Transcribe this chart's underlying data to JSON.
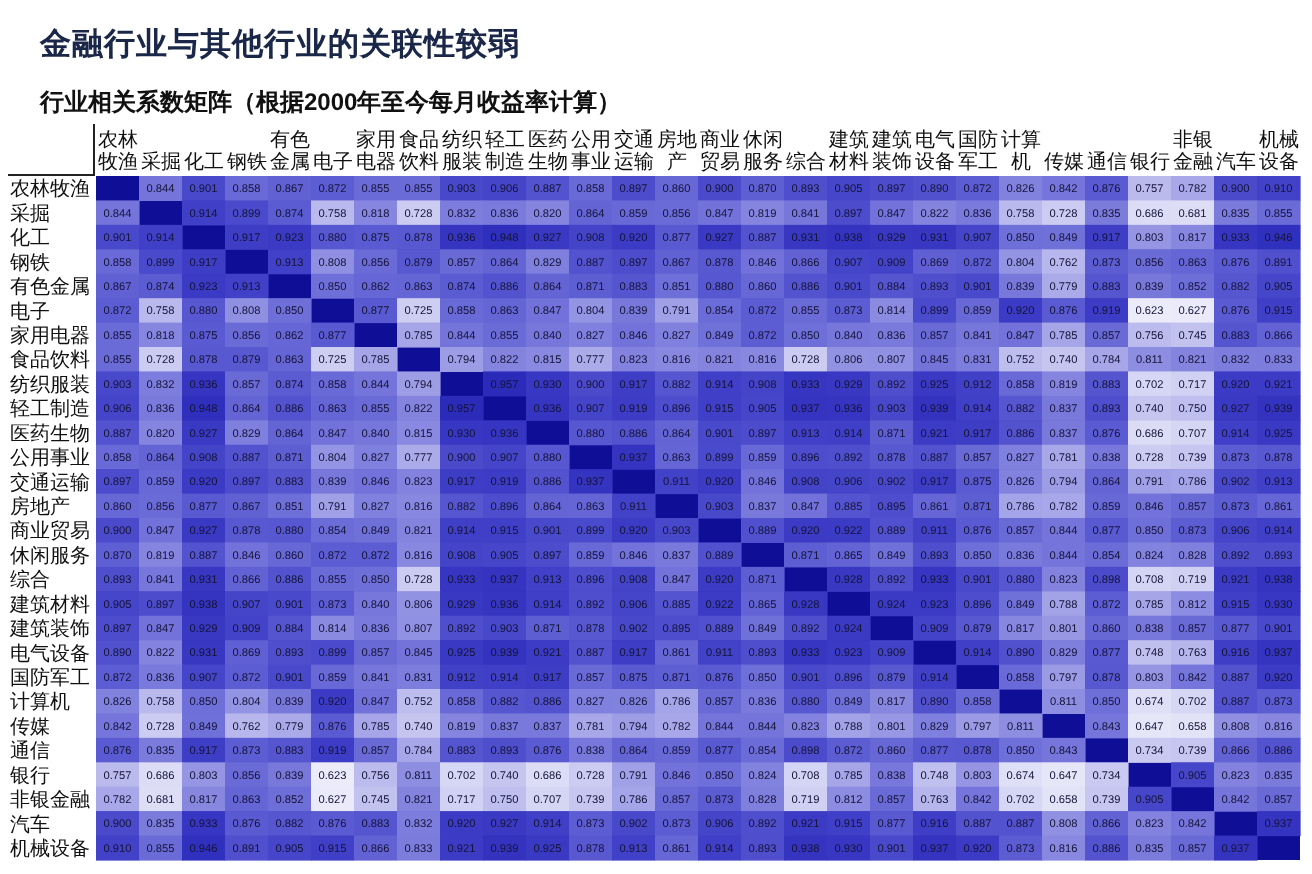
{
  "chart_data": {
    "type": "heatmap",
    "title": "金融行业与其他行业的关联性较弱",
    "subtitle": "行业相关系数矩阵（根据2000年至今每月收益率计算）",
    "categories": [
      "农林牧渔",
      "采掘",
      "化工",
      "钢铁",
      "有色金属",
      "电子",
      "家用电器",
      "食品饮料",
      "纺织服装",
      "轻工制造",
      "医药生物",
      "公用事业",
      "交通运输",
      "房地产",
      "商业贸易",
      "休闲服务",
      "综合",
      "建筑材料",
      "建筑装饰",
      "电气设备",
      "国防军工",
      "计算机",
      "传媒",
      "通信",
      "银行",
      "非银金融",
      "汽车",
      "机械设备"
    ],
    "y_categories": [
      "农林牧渔",
      "采掘",
      "化工",
      "钢铁",
      "有色金属",
      "电子",
      "家用电器",
      "食品饮料",
      "纺织服装",
      "轻工制造",
      "医药生物",
      "公用事业",
      "交通运输",
      "房地产",
      "商业贸易",
      "休闲服务",
      "综合",
      "建筑材料",
      "建筑装饰",
      "电气设备",
      "国防军工",
      "计算机",
      "传媒",
      "通信",
      "银行",
      "非银金融",
      "汽车",
      "机械设备"
    ],
    "cells": [
      [
        null,
        0.844,
        0.901,
        0.858,
        0.867,
        0.872,
        0.855,
        0.855,
        0.903,
        0.906,
        0.887,
        0.858,
        0.897,
        0.86,
        0.9,
        0.87,
        0.893,
        0.905,
        0.897,
        0.89,
        0.872,
        0.826,
        0.842,
        0.876,
        0.757,
        0.782,
        0.9,
        0.91
      ],
      [
        0.844,
        null,
        0.914,
        0.899,
        0.874,
        0.758,
        0.818,
        0.728,
        0.832,
        0.836,
        0.82,
        0.864,
        0.859,
        0.856,
        0.847,
        0.819,
        0.841,
        0.897,
        0.847,
        0.822,
        0.836,
        0.758,
        0.728,
        0.835,
        0.686,
        0.681,
        0.835,
        0.855
      ],
      [
        0.901,
        0.914,
        null,
        0.917,
        0.923,
        0.88,
        0.875,
        0.878,
        0.936,
        0.948,
        0.927,
        0.908,
        0.92,
        0.877,
        0.927,
        0.887,
        0.931,
        0.938,
        0.929,
        0.931,
        0.907,
        0.85,
        0.849,
        0.917,
        0.803,
        0.817,
        0.933,
        0.946
      ],
      [
        0.858,
        0.899,
        0.917,
        null,
        0.913,
        0.808,
        0.856,
        0.879,
        0.857,
        0.864,
        0.829,
        0.887,
        0.897,
        0.867,
        0.878,
        0.846,
        0.866,
        0.907,
        0.909,
        0.869,
        0.872,
        0.804,
        0.762,
        0.873,
        0.856,
        0.863,
        0.876,
        0.891
      ],
      [
        0.867,
        0.874,
        0.923,
        0.913,
        null,
        0.85,
        0.862,
        0.863,
        0.874,
        0.886,
        0.864,
        0.871,
        0.883,
        0.851,
        0.88,
        0.86,
        0.886,
        0.901,
        0.884,
        0.893,
        0.901,
        0.839,
        0.779,
        0.883,
        0.839,
        0.852,
        0.882,
        0.905
      ],
      [
        0.872,
        0.758,
        0.88,
        0.808,
        0.85,
        null,
        0.877,
        0.725,
        0.858,
        0.863,
        0.847,
        0.804,
        0.839,
        0.791,
        0.854,
        0.872,
        0.855,
        0.873,
        0.814,
        0.899,
        0.859,
        0.92,
        0.876,
        0.919,
        0.623,
        0.627,
        0.876,
        0.915
      ],
      [
        0.855,
        0.818,
        0.875,
        0.856,
        0.862,
        0.877,
        null,
        0.785,
        0.844,
        0.855,
        0.84,
        0.827,
        0.846,
        0.827,
        0.849,
        0.872,
        0.85,
        0.84,
        0.836,
        0.857,
        0.841,
        0.847,
        0.785,
        0.857,
        0.756,
        0.745,
        0.883,
        0.866
      ],
      [
        0.855,
        0.728,
        0.878,
        0.879,
        0.863,
        0.725,
        0.785,
        null,
        0.794,
        0.822,
        0.815,
        0.777,
        0.823,
        0.816,
        0.821,
        0.816,
        0.728,
        0.806,
        0.807,
        0.845,
        0.831,
        0.752,
        0.74,
        0.784,
        0.811,
        0.821,
        0.832,
        0.833
      ],
      [
        0.903,
        0.832,
        0.936,
        0.857,
        0.874,
        0.858,
        0.844,
        0.794,
        null,
        0.957,
        0.93,
        0.9,
        0.917,
        0.882,
        0.914,
        0.908,
        0.933,
        0.929,
        0.892,
        0.925,
        0.912,
        0.858,
        0.819,
        0.883,
        0.702,
        0.717,
        0.92,
        0.921
      ],
      [
        0.906,
        0.836,
        0.948,
        0.864,
        0.886,
        0.863,
        0.855,
        0.822,
        0.957,
        null,
        0.936,
        0.907,
        0.919,
        0.896,
        0.915,
        0.905,
        0.937,
        0.936,
        0.903,
        0.939,
        0.914,
        0.882,
        0.837,
        0.893,
        0.74,
        0.75,
        0.927,
        0.939
      ],
      [
        0.887,
        0.82,
        0.927,
        0.829,
        0.864,
        0.847,
        0.84,
        0.815,
        0.93,
        0.936,
        null,
        0.88,
        0.886,
        0.864,
        0.901,
        0.897,
        0.913,
        0.914,
        0.871,
        0.921,
        0.917,
        0.886,
        0.837,
        0.876,
        0.686,
        0.707,
        0.914,
        0.925
      ],
      [
        0.858,
        0.864,
        0.908,
        0.887,
        0.871,
        0.804,
        0.827,
        0.777,
        0.9,
        0.907,
        0.88,
        null,
        0.937,
        0.863,
        0.899,
        0.859,
        0.896,
        0.892,
        0.878,
        0.887,
        0.857,
        0.827,
        0.781,
        0.838,
        0.728,
        0.739,
        0.873,
        0.878
      ],
      [
        0.897,
        0.859,
        0.92,
        0.897,
        0.883,
        0.839,
        0.846,
        0.823,
        0.917,
        0.919,
        0.886,
        0.937,
        null,
        0.911,
        0.92,
        0.846,
        0.908,
        0.906,
        0.902,
        0.917,
        0.875,
        0.826,
        0.794,
        0.864,
        0.791,
        0.786,
        0.902,
        0.913
      ],
      [
        0.86,
        0.856,
        0.877,
        0.867,
        0.851,
        0.791,
        0.827,
        0.816,
        0.882,
        0.896,
        0.864,
        0.863,
        0.911,
        null,
        0.903,
        0.837,
        0.847,
        0.885,
        0.895,
        0.861,
        0.871,
        0.786,
        0.782,
        0.859,
        0.846,
        0.857,
        0.873,
        0.861
      ],
      [
        0.9,
        0.847,
        0.927,
        0.878,
        0.88,
        0.854,
        0.849,
        0.821,
        0.914,
        0.915,
        0.901,
        0.899,
        0.92,
        0.903,
        null,
        0.889,
        0.92,
        0.922,
        0.889,
        0.911,
        0.876,
        0.857,
        0.844,
        0.877,
        0.85,
        0.873,
        0.906,
        0.914
      ],
      [
        0.87,
        0.819,
        0.887,
        0.846,
        0.86,
        0.872,
        0.872,
        0.816,
        0.908,
        0.905,
        0.897,
        0.859,
        0.846,
        0.837,
        0.889,
        null,
        0.871,
        0.865,
        0.849,
        0.893,
        0.85,
        0.836,
        0.844,
        0.854,
        0.824,
        0.828,
        0.892,
        0.893
      ],
      [
        0.893,
        0.841,
        0.931,
        0.866,
        0.886,
        0.855,
        0.85,
        0.728,
        0.933,
        0.937,
        0.913,
        0.896,
        0.908,
        0.847,
        0.92,
        0.871,
        null,
        0.928,
        0.892,
        0.933,
        0.901,
        0.88,
        0.823,
        0.898,
        0.708,
        0.719,
        0.921,
        0.938
      ],
      [
        0.905,
        0.897,
        0.938,
        0.907,
        0.901,
        0.873,
        0.84,
        0.806,
        0.929,
        0.936,
        0.914,
        0.892,
        0.906,
        0.885,
        0.922,
        0.865,
        0.928,
        null,
        0.924,
        0.923,
        0.896,
        0.849,
        0.788,
        0.872,
        0.785,
        0.812,
        0.915,
        0.93
      ],
      [
        0.897,
        0.847,
        0.929,
        0.909,
        0.884,
        0.814,
        0.836,
        0.807,
        0.892,
        0.903,
        0.871,
        0.878,
        0.902,
        0.895,
        0.889,
        0.849,
        0.892,
        0.924,
        null,
        0.909,
        0.879,
        0.817,
        0.801,
        0.86,
        0.838,
        0.857,
        0.877,
        0.901
      ],
      [
        0.89,
        0.822,
        0.931,
        0.869,
        0.893,
        0.899,
        0.857,
        0.845,
        0.925,
        0.939,
        0.921,
        0.887,
        0.917,
        0.861,
        0.911,
        0.893,
        0.933,
        0.923,
        0.909,
        null,
        0.914,
        0.89,
        0.829,
        0.877,
        0.748,
        0.763,
        0.916,
        0.937
      ],
      [
        0.872,
        0.836,
        0.907,
        0.872,
        0.901,
        0.859,
        0.841,
        0.831,
        0.912,
        0.914,
        0.917,
        0.857,
        0.875,
        0.871,
        0.876,
        0.85,
        0.901,
        0.896,
        0.879,
        0.914,
        null,
        0.858,
        0.797,
        0.878,
        0.803,
        0.842,
        0.887,
        0.92
      ],
      [
        0.826,
        0.758,
        0.85,
        0.804,
        0.839,
        0.92,
        0.847,
        0.752,
        0.858,
        0.882,
        0.886,
        0.827,
        0.826,
        0.786,
        0.857,
        0.836,
        0.88,
        0.849,
        0.817,
        0.89,
        0.858,
        null,
        0.811,
        0.85,
        0.674,
        0.702,
        0.887,
        0.873
      ],
      [
        0.842,
        0.728,
        0.849,
        0.762,
        0.779,
        0.876,
        0.785,
        0.74,
        0.819,
        0.837,
        0.837,
        0.781,
        0.794,
        0.782,
        0.844,
        0.844,
        0.823,
        0.788,
        0.801,
        0.829,
        0.797,
        0.811,
        null,
        0.843,
        0.647,
        0.658,
        0.808,
        0.816
      ],
      [
        0.876,
        0.835,
        0.917,
        0.873,
        0.883,
        0.919,
        0.857,
        0.784,
        0.883,
        0.893,
        0.876,
        0.838,
        0.864,
        0.859,
        0.877,
        0.854,
        0.898,
        0.872,
        0.86,
        0.877,
        0.878,
        0.85,
        0.843,
        null,
        0.734,
        0.739,
        0.866,
        0.886
      ],
      [
        0.757,
        0.686,
        0.803,
        0.856,
        0.839,
        0.623,
        0.756,
        0.811,
        0.702,
        0.74,
        0.686,
        0.728,
        0.791,
        0.846,
        0.85,
        0.824,
        0.708,
        0.785,
        0.838,
        0.748,
        0.803,
        0.674,
        0.647,
        0.734,
        null,
        0.905,
        0.823,
        0.835
      ],
      [
        0.782,
        0.681,
        0.817,
        0.863,
        0.852,
        0.627,
        0.745,
        0.821,
        0.717,
        0.75,
        0.707,
        0.739,
        0.786,
        0.857,
        0.873,
        0.828,
        0.719,
        0.812,
        0.857,
        0.763,
        0.842,
        0.702,
        0.658,
        0.739,
        0.905,
        null,
        0.842,
        0.857
      ],
      [
        0.9,
        0.835,
        0.933,
        0.876,
        0.882,
        0.876,
        0.883,
        0.832,
        0.92,
        0.927,
        0.914,
        0.873,
        0.902,
        0.873,
        0.906,
        0.892,
        0.921,
        0.915,
        0.877,
        0.916,
        0.887,
        0.887,
        0.808,
        0.866,
        0.823,
        0.842,
        null,
        0.937
      ],
      [
        0.91,
        0.855,
        0.946,
        0.891,
        0.905,
        0.915,
        0.866,
        0.833,
        0.921,
        0.939,
        0.925,
        0.878,
        0.913,
        0.861,
        0.914,
        0.893,
        0.938,
        0.93,
        0.901,
        0.937,
        0.92,
        0.873,
        0.816,
        0.886,
        0.835,
        0.857,
        0.937,
        null
      ]
    ],
    "cell_labels": [
      [
        null,
        "0.844",
        "0.901",
        "0.858",
        "0.867",
        "0.872",
        "0.855",
        "0.855",
        "0.903",
        "0.906",
        "0.887",
        "0.858",
        "0.897",
        "0.860",
        "0.900",
        "0.870",
        "0.893",
        "0.905",
        "0.897",
        "0.890",
        "0.872",
        "0.826",
        "0.842",
        "0.876",
        "0.757",
        "0.782",
        "0.900",
        "0.910"
      ],
      [
        "0.844",
        null,
        "0.914",
        "0.899",
        "0.874",
        "0.758",
        "0.818",
        "0.728",
        "0.832",
        "0.836",
        "0.820",
        "0.864",
        "0.859",
        "0.856",
        "0.847",
        "0.819",
        "0.841",
        "0.897",
        "0.847",
        "0.822",
        "0.836",
        "0.758",
        "0.728",
        "0.835",
        "0.686",
        "0.681",
        "0.835",
        "0.855"
      ],
      [
        "0.901",
        "0.914",
        null,
        "0.917",
        "0.923",
        "0.880",
        "0.875",
        "0.878",
        "0.936",
        "0.948",
        "0.927",
        "0.908",
        "0.920",
        "0.877",
        "0.927",
        "0.887",
        "0.931",
        "0.938",
        "0.929",
        "0.931",
        "0.907",
        "0.850",
        "0.849",
        "0.917",
        "0.803",
        "0.817",
        "0.933",
        "0.946"
      ],
      [
        "0.858",
        "0.899",
        "0.917",
        null,
        "0.913",
        "0.808",
        "0.856",
        "0.879",
        "0.857",
        "0.864",
        "0.829",
        "0.887",
        "0.897",
        "0.867",
        "0.878",
        "0.846",
        "0.866",
        "0.907",
        "0.909",
        "0.869",
        "0.872",
        "0.804",
        "0.762",
        "0.873",
        "0.856",
        "0.863",
        "0.876",
        "0.891"
      ],
      [
        "0.867",
        "0.874",
        "0.923",
        "0.913",
        null,
        "0.850",
        "0.862",
        "0.863",
        "0.874",
        "0.886",
        "0.864",
        "0.871",
        "0.883",
        "0.851",
        "0.880",
        "0.860",
        "0.886",
        "0.901",
        "0.884",
        "0.893",
        "0.901",
        "0.839",
        "0.779",
        "0.883",
        "0.839",
        "0.852",
        "0.882",
        "0.905"
      ],
      [
        "0.872",
        "0.758",
        "0.880",
        "0.808",
        "0.850",
        null,
        "0.877",
        "0.725",
        "0.858",
        "0.863",
        "0.847",
        "0.804",
        "0.839",
        "0.791",
        "0.854",
        "0.872",
        "0.855",
        "0.873",
        "0.814",
        "0.899",
        "0.859",
        "0.920",
        "0.876",
        "0.919",
        "0.623",
        "0.627",
        "0.876",
        "0.915"
      ],
      [
        "0.855",
        "0.818",
        "0.875",
        "0.856",
        "0.862",
        "0.877",
        null,
        "0.785",
        "0.844",
        "0.855",
        "0.840",
        "0.827",
        "0.846",
        "0.827",
        "0.849",
        "0.872",
        "0.850",
        "0.840",
        "0.836",
        "0.857",
        "0.841",
        "0.847",
        "0.785",
        "0.857",
        "0.756",
        "0.745",
        "0.883",
        "0.866"
      ],
      [
        "0.855",
        "0.728",
        "0.878",
        "0.879",
        "0.863",
        "0.725",
        "0.785",
        null,
        "0.794",
        "0.822",
        "0.815",
        "0.777",
        "0.823",
        "0.816",
        "0.821",
        "0.816",
        "0.728",
        "0.806",
        "0.807",
        "0.845",
        "0.831",
        "0.752",
        "0.740",
        "0.784",
        "0.811",
        "0.821",
        "0.832",
        "0.833"
      ],
      [
        "0.903",
        "0.832",
        "0.936",
        "0.857",
        "0.874",
        "0.858",
        "0.844",
        "0.794",
        null,
        "0.957",
        "0.930",
        "0.900",
        "0.917",
        "0.882",
        "0.914",
        "0.908",
        "0.933",
        "0.929",
        "0.892",
        "0.925",
        "0.912",
        "0.858",
        "0.819",
        "0.883",
        "0.702",
        "0.717",
        "0.920",
        "0.921"
      ],
      [
        "0.906",
        "0.836",
        "0.948",
        "0.864",
        "0.886",
        "0.863",
        "0.855",
        "0.822",
        "0.957",
        null,
        "0.936",
        "0.907",
        "0.919",
        "0.896",
        "0.915",
        "0.905",
        "0.937",
        "0.936",
        "0.903",
        "0.939",
        "0.914",
        "0.882",
        "0.837",
        "0.893",
        "0.740",
        "0.750",
        "0.927",
        "0.939"
      ],
      [
        "0.887",
        "0.820",
        "0.927",
        "0.829",
        "0.864",
        "0.847",
        "0.840",
        "0.815",
        "0.930",
        "0.936",
        null,
        "0.880",
        "0.886",
        "0.864",
        "0.901",
        "0.897",
        "0.913",
        "0.914",
        "0.871",
        "0.921",
        "0.917",
        "0.886",
        "0.837",
        "0.876",
        "0.686",
        "0.707",
        "0.914",
        "0.925"
      ],
      [
        "0.858",
        "0.864",
        "0.908",
        "0.887",
        "0.871",
        "0.804",
        "0.827",
        "0.777",
        "0.900",
        "0.907",
        "0.880",
        null,
        "0.937",
        "0.863",
        "0.899",
        "0.859",
        "0.896",
        "0.892",
        "0.878",
        "0.887",
        "0.857",
        "0.827",
        "0.781",
        "0.838",
        "0.728",
        "0.739",
        "0.873",
        "0.878"
      ],
      [
        "0.897",
        "0.859",
        "0.920",
        "0.897",
        "0.883",
        "0.839",
        "0.846",
        "0.823",
        "0.917",
        "0.919",
        "0.886",
        "0.937",
        null,
        "0.911",
        "0.920",
        "0.846",
        "0.908",
        "0.906",
        "0.902",
        "0.917",
        "0.875",
        "0.826",
        "0.794",
        "0.864",
        "0.791",
        "0.786",
        "0.902",
        "0.913"
      ],
      [
        "0.860",
        "0.856",
        "0.877",
        "0.867",
        "0.851",
        "0.791",
        "0.827",
        "0.816",
        "0.882",
        "0.896",
        "0.864",
        "0.863",
        "0.911",
        null,
        "0.903",
        "0.837",
        "0.847",
        "0.885",
        "0.895",
        "0.861",
        "0.871",
        "0.786",
        "0.782",
        "0.859",
        "0.846",
        "0.857",
        "0.873",
        "0.861"
      ],
      [
        "0.900",
        "0.847",
        "0.927",
        "0.878",
        "0.880",
        "0.854",
        "0.849",
        "0.821",
        "0.914",
        "0.915",
        "0.901",
        "0.899",
        "0.920",
        "0.903",
        null,
        "0.889",
        "0.920",
        "0.922",
        "0.889",
        "0.911",
        "0.876",
        "0.857",
        "0.844",
        "0.877",
        "0.850",
        "0.873",
        "0.906",
        "0.914"
      ],
      [
        "0.870",
        "0.819",
        "0.887",
        "0.846",
        "0.860",
        "0.872",
        "0.872",
        "0.816",
        "0.908",
        "0.905",
        "0.897",
        "0.859",
        "0.846",
        "0.837",
        "0.889",
        null,
        "0.871",
        "0.865",
        "0.849",
        "0.893",
        "0.850",
        "0.836",
        "0.844",
        "0.854",
        "0.824",
        "0.828",
        "0.892",
        "0.893"
      ],
      [
        "0.893",
        "0.841",
        "0.931",
        "0.866",
        "0.886",
        "0.855",
        "0.850",
        "0.728",
        "0.933",
        "0.937",
        "0.913",
        "0.896",
        "0.908",
        "0.847",
        "0.920",
        "0.871",
        null,
        "0.928",
        "0.892",
        "0.933",
        "0.901",
        "0.880",
        "0.823",
        "0.898",
        "0.708",
        "0.719",
        "0.921",
        "0.938"
      ],
      [
        "0.905",
        "0.897",
        "0.938",
        "0.907",
        "0.901",
        "0.873",
        "0.840",
        "0.806",
        "0.929",
        "0.936",
        "0.914",
        "0.892",
        "0.906",
        "0.885",
        "0.922",
        "0.865",
        "0.928",
        null,
        "0.924",
        "0.923",
        "0.896",
        "0.849",
        "0.788",
        "0.872",
        "0.785",
        "0.812",
        "0.915",
        "0.930"
      ],
      [
        "0.897",
        "0.847",
        "0.929",
        "0.909",
        "0.884",
        "0.814",
        "0.836",
        "0.807",
        "0.892",
        "0.903",
        "0.871",
        "0.878",
        "0.902",
        "0.895",
        "0.889",
        "0.849",
        "0.892",
        "0.924",
        null,
        "0.909",
        "0.879",
        "0.817",
        "0.801",
        "0.860",
        "0.838",
        "0.857",
        "0.877",
        "0.901"
      ],
      [
        "0.890",
        "0.822",
        "0.931",
        "0.869",
        "0.893",
        "0.899",
        "0.857",
        "0.845",
        "0.925",
        "0.939",
        "0.921",
        "0.887",
        "0.917",
        "0.861",
        "0.911",
        "0.893",
        "0.933",
        "0.923",
        "0.909",
        null,
        "0.914",
        "0.890",
        "0.829",
        "0.877",
        "0.748",
        "0.763",
        "0.916",
        "0.937"
      ],
      [
        "0.872",
        "0.836",
        "0.907",
        "0.872",
        "0.901",
        "0.859",
        "0.841",
        "0.831",
        "0.912",
        "0.914",
        "0.917",
        "0.857",
        "0.875",
        "0.871",
        "0.876",
        "0.850",
        "0.901",
        "0.896",
        "0.879",
        "0.914",
        null,
        "0.858",
        "0.797",
        "0.878",
        "0.803",
        "0.842",
        "0.887",
        "0.920"
      ],
      [
        "0.826",
        "0.758",
        "0.850",
        "0.804",
        "0.839",
        "0.920",
        "0.847",
        "0.752",
        "0.858",
        "0.882",
        "0.886",
        "0.827",
        "0.826",
        "0.786",
        "0.857",
        "0.836",
        "0.880",
        "0.849",
        "0.817",
        "0.890",
        "0.858",
        null,
        "0.811",
        "0.850",
        "0.674",
        "0.702",
        "0.887",
        "0.873"
      ],
      [
        "0.842",
        "0.728",
        "0.849",
        "0.762",
        "0.779",
        "0.876",
        "0.785",
        "0.740",
        "0.819",
        "0.837",
        "0.837",
        "0.781",
        "0.794",
        "0.782",
        "0.844",
        "0.844",
        "0.823",
        "0.788",
        "0.801",
        "0.829",
        "0.797",
        "0.811",
        null,
        "0.843",
        "0.647",
        "0.658",
        "0.808",
        "0.816"
      ],
      [
        "0.876",
        "0.835",
        "0.917",
        "0.873",
        "0.883",
        "0.919",
        "0.857",
        "0.784",
        "0.883",
        "0.893",
        "0.876",
        "0.838",
        "0.864",
        "0.859",
        "0.877",
        "0.854",
        "0.898",
        "0.872",
        "0.860",
        "0.877",
        "0.878",
        "0.850",
        "0.843",
        null,
        "0.734",
        "0.739",
        "0.866",
        "0.886"
      ],
      [
        "0.757",
        "0.686",
        "0.803",
        "0.856",
        "0.839",
        "0.623",
        "0.756",
        "0.811",
        "0.702",
        "0.740",
        "0.686",
        "0.728",
        "0.791",
        "0.846",
        "0.850",
        "0.824",
        "0.708",
        "0.785",
        "0.838",
        "0.748",
        "0.803",
        "0.674",
        "0.647",
        "0.734",
        null,
        "0.905",
        "0.823",
        "0.835"
      ],
      [
        "0.782",
        "0.681",
        "0.817",
        "0.863",
        "0.852",
        "0.627",
        "0.745",
        "0.821",
        "0.717",
        "0.750",
        "0.707",
        "0.739",
        "0.786",
        "0.857",
        "0.873",
        "0.828",
        "0.719",
        "0.812",
        "0.857",
        "0.763",
        "0.842",
        "0.702",
        "0.658",
        "0.739",
        "0.905",
        null,
        "0.842",
        "0.857"
      ],
      [
        "0.900",
        "0.835",
        "0.933",
        "0.876",
        "0.882",
        "0.876",
        "0.883",
        "0.832",
        "0.920",
        "0.927",
        "0.914",
        "0.873",
        "0.902",
        "0.873",
        "0.906",
        "0.892",
        "0.921",
        "0.915",
        "0.877",
        "0.916",
        "0.887",
        "0.887",
        "0.808",
        "0.866",
        "0.823",
        "0.842",
        null,
        "0.937"
      ],
      [
        "0.910",
        "0.855",
        "0.946",
        "0.891",
        "0.905",
        "0.915",
        "0.866",
        "0.833",
        "0.921",
        "0.939",
        "0.925",
        "0.878",
        "0.913",
        "0.861",
        "0.914",
        "0.893",
        "0.938",
        "0.930",
        "0.901",
        "0.937",
        "0.920",
        "0.873",
        "0.816",
        "0.886",
        "0.835",
        "0.857",
        "0.937",
        null
      ]
    ]
  }
}
